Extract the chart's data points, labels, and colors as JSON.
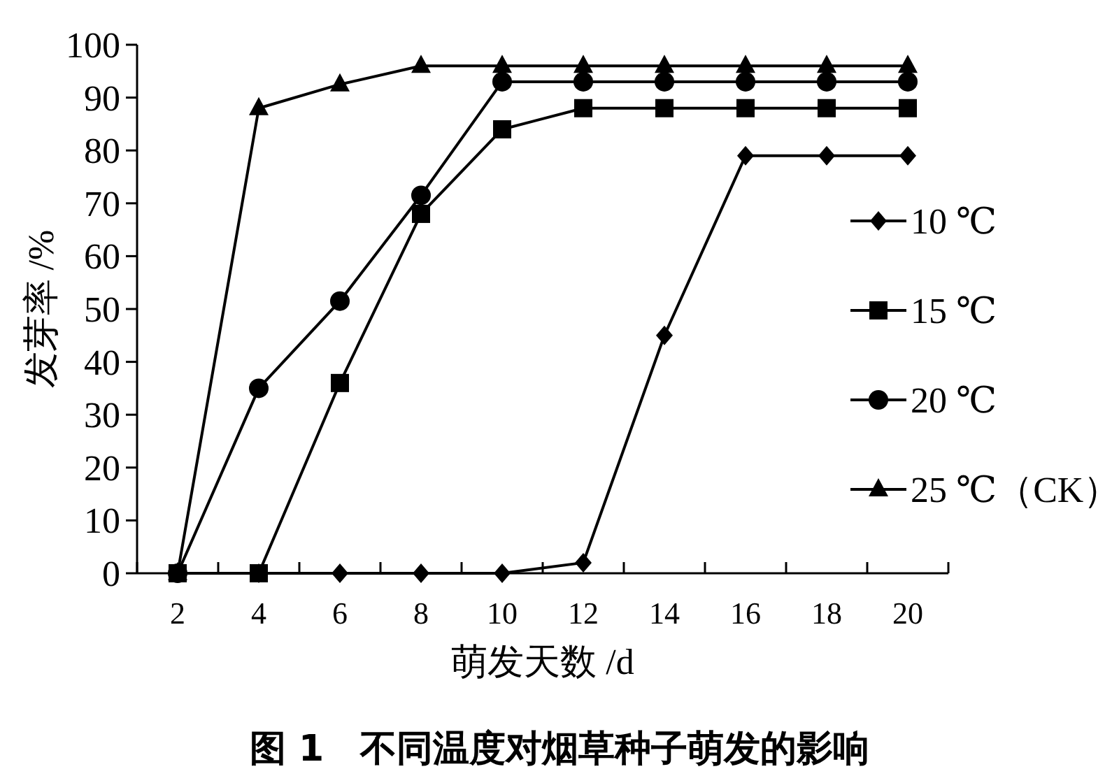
{
  "chart_data": {
    "type": "line",
    "title": "图 1　不同温度对烟草种子萌发的影响",
    "xlabel": "萌发天数 /d",
    "ylabel": "发芽率 /%",
    "categories": [
      "2",
      "4",
      "6",
      "8",
      "10",
      "12",
      "14",
      "16",
      "18",
      "20"
    ],
    "ylim": [
      0,
      100
    ],
    "yticks": [
      0,
      10,
      20,
      30,
      40,
      50,
      60,
      70,
      80,
      90,
      100
    ],
    "legend": "right",
    "grid": false,
    "line_style": "solid",
    "series": [
      {
        "name": "10 ℃",
        "color": "#000000",
        "marker": "diamond",
        "values": [
          0,
          0,
          0,
          0,
          0,
          2,
          45,
          79,
          79,
          79
        ]
      },
      {
        "name": "15 ℃",
        "color": "#000000",
        "marker": "square",
        "values": [
          0,
          0,
          36,
          68,
          84,
          88,
          88,
          88,
          88,
          88
        ]
      },
      {
        "name": "20 ℃",
        "color": "#000000",
        "marker": "circle",
        "values": [
          0,
          35,
          51.5,
          71.5,
          93,
          93,
          93,
          93,
          93,
          93
        ]
      },
      {
        "name": "25 ℃（CK）",
        "color": "#000000",
        "marker": "triangle",
        "values": [
          0,
          88,
          92.5,
          96,
          96,
          96,
          96,
          96,
          96,
          96
        ]
      }
    ]
  }
}
